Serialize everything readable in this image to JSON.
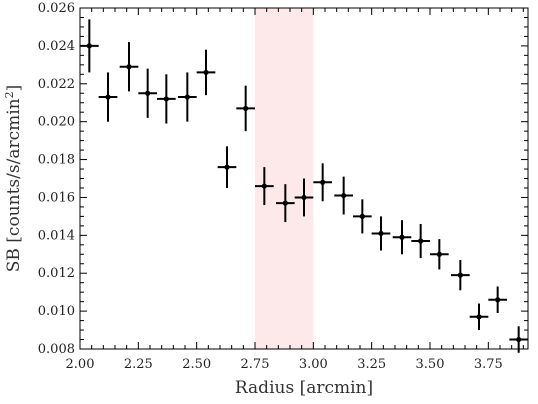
{
  "chart_data": {
    "type": "scatter",
    "xlabel": "Radius [arcmin]",
    "ylabel_main": "SB [counts/s/arcmin",
    "ylabel_sup": "2",
    "ylabel_close": "]",
    "xlim": [
      2.0,
      3.92
    ],
    "ylim": [
      0.008,
      0.026
    ],
    "x_ticks": [
      2.0,
      2.25,
      2.5,
      2.75,
      3.0,
      3.25,
      3.5,
      3.75
    ],
    "x_tick_labels": [
      "2.00",
      "2.25",
      "2.50",
      "2.75",
      "3.00",
      "3.25",
      "3.50",
      "3.75"
    ],
    "y_ticks": [
      0.008,
      0.01,
      0.012,
      0.014,
      0.016,
      0.018,
      0.02,
      0.022,
      0.024,
      0.026
    ],
    "y_tick_labels": [
      "0.008",
      "0.010",
      "0.012",
      "0.014",
      "0.016",
      "0.018",
      "0.020",
      "0.022",
      "0.024",
      "0.026"
    ],
    "shaded_region": {
      "x": [
        2.75,
        3.0
      ],
      "color": "#fde9ea"
    },
    "grid": false,
    "series": [
      {
        "marker_color": "#000000",
        "x_err": 0.04,
        "points": [
          {
            "x": 2.04,
            "y": 0.024,
            "yerr": 0.0014
          },
          {
            "x": 2.12,
            "y": 0.0213,
            "yerr": 0.0013
          },
          {
            "x": 2.21,
            "y": 0.0229,
            "yerr": 0.0013
          },
          {
            "x": 2.29,
            "y": 0.0215,
            "yerr": 0.0013
          },
          {
            "x": 2.37,
            "y": 0.0212,
            "yerr": 0.0013
          },
          {
            "x": 2.46,
            "y": 0.0213,
            "yerr": 0.0013
          },
          {
            "x": 2.54,
            "y": 0.0226,
            "yerr": 0.0012
          },
          {
            "x": 2.63,
            "y": 0.0176,
            "yerr": 0.0011
          },
          {
            "x": 2.71,
            "y": 0.0207,
            "yerr": 0.0012
          },
          {
            "x": 2.79,
            "y": 0.0166,
            "yerr": 0.001
          },
          {
            "x": 2.88,
            "y": 0.0157,
            "yerr": 0.001
          },
          {
            "x": 2.96,
            "y": 0.016,
            "yerr": 0.001
          },
          {
            "x": 3.04,
            "y": 0.0168,
            "yerr": 0.001
          },
          {
            "x": 3.13,
            "y": 0.0161,
            "yerr": 0.001
          },
          {
            "x": 3.21,
            "y": 0.015,
            "yerr": 0.0009
          },
          {
            "x": 3.29,
            "y": 0.0141,
            "yerr": 0.0009
          },
          {
            "x": 3.38,
            "y": 0.0139,
            "yerr": 0.0009
          },
          {
            "x": 3.46,
            "y": 0.0137,
            "yerr": 0.0009
          },
          {
            "x": 3.54,
            "y": 0.013,
            "yerr": 0.0008
          },
          {
            "x": 3.63,
            "y": 0.0119,
            "yerr": 0.0008
          },
          {
            "x": 3.71,
            "y": 0.0097,
            "yerr": 0.0007
          },
          {
            "x": 3.79,
            "y": 0.0106,
            "yerr": 0.0007
          },
          {
            "x": 3.88,
            "y": 0.0085,
            "yerr": 0.0007
          }
        ]
      }
    ]
  }
}
